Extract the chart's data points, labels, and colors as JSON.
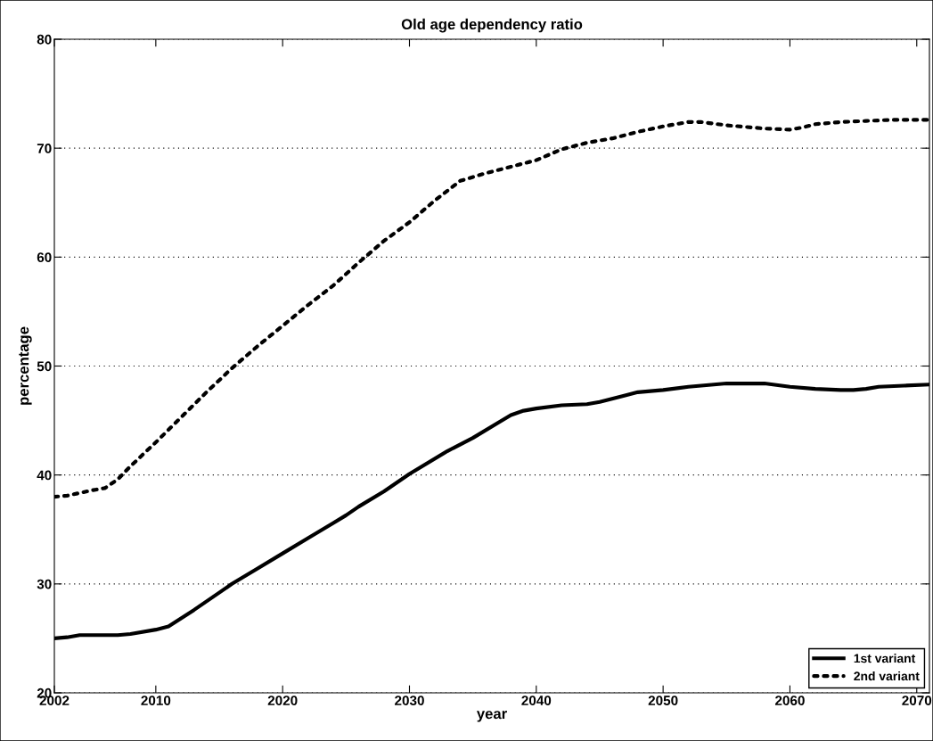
{
  "chart_data": {
    "type": "line",
    "title": "Old age dependency ratio",
    "xlabel": "year",
    "ylabel": "percentage",
    "xlim": [
      2002,
      2071
    ],
    "xticks": [
      2002,
      2010,
      2020,
      2030,
      2040,
      2050,
      2060,
      2070
    ],
    "ylim": [
      20,
      80
    ],
    "yticks": [
      20,
      30,
      40,
      50,
      60,
      70,
      80
    ],
    "grid": "y",
    "legend": "bottom right",
    "series": [
      {
        "name": "1st variant",
        "color": "#000000",
        "line_style": "solid",
        "x": [
          2002,
          2003,
          2004,
          2005,
          2007,
          2008,
          2010,
          2011,
          2013,
          2015,
          2016,
          2018,
          2020,
          2022,
          2024,
          2025,
          2026,
          2028,
          2030,
          2033,
          2035,
          2037,
          2038,
          2039,
          2040,
          2042,
          2044,
          2045,
          2047,
          2048,
          2050,
          2052,
          2054,
          2055,
          2058,
          2060,
          2062,
          2064,
          2065,
          2066,
          2067,
          2069,
          2071
        ],
        "values": [
          25.0,
          25.1,
          25.3,
          25.3,
          25.3,
          25.4,
          25.8,
          26.1,
          27.6,
          29.2,
          30.0,
          31.4,
          32.8,
          34.2,
          35.6,
          36.3,
          37.1,
          38.5,
          40.1,
          42.2,
          43.4,
          44.8,
          45.5,
          45.9,
          46.1,
          46.4,
          46.5,
          46.7,
          47.3,
          47.6,
          47.8,
          48.1,
          48.3,
          48.4,
          48.4,
          48.1,
          47.9,
          47.8,
          47.8,
          47.9,
          48.1,
          48.2,
          48.3
        ]
      },
      {
        "name": "2nd variant",
        "color": "#000000",
        "line_style": "dotted",
        "x": [
          2002,
          2003,
          2005,
          2006,
          2007,
          2008,
          2010,
          2012,
          2014,
          2016,
          2018,
          2020,
          2022,
          2024,
          2026,
          2028,
          2030,
          2032,
          2034,
          2036,
          2038,
          2040,
          2042,
          2044,
          2046,
          2048,
          2050,
          2052,
          2053,
          2055,
          2058,
          2060,
          2061,
          2062,
          2064,
          2066,
          2068,
          2071
        ],
        "values": [
          38.0,
          38.1,
          38.6,
          38.8,
          39.6,
          40.8,
          43.0,
          45.3,
          47.6,
          49.8,
          51.8,
          53.7,
          55.6,
          57.4,
          59.5,
          61.5,
          63.2,
          65.2,
          67.0,
          67.7,
          68.3,
          68.9,
          69.9,
          70.5,
          70.9,
          71.5,
          72.0,
          72.4,
          72.4,
          72.1,
          71.8,
          71.7,
          71.9,
          72.2,
          72.4,
          72.5,
          72.6,
          72.6
        ]
      }
    ]
  }
}
